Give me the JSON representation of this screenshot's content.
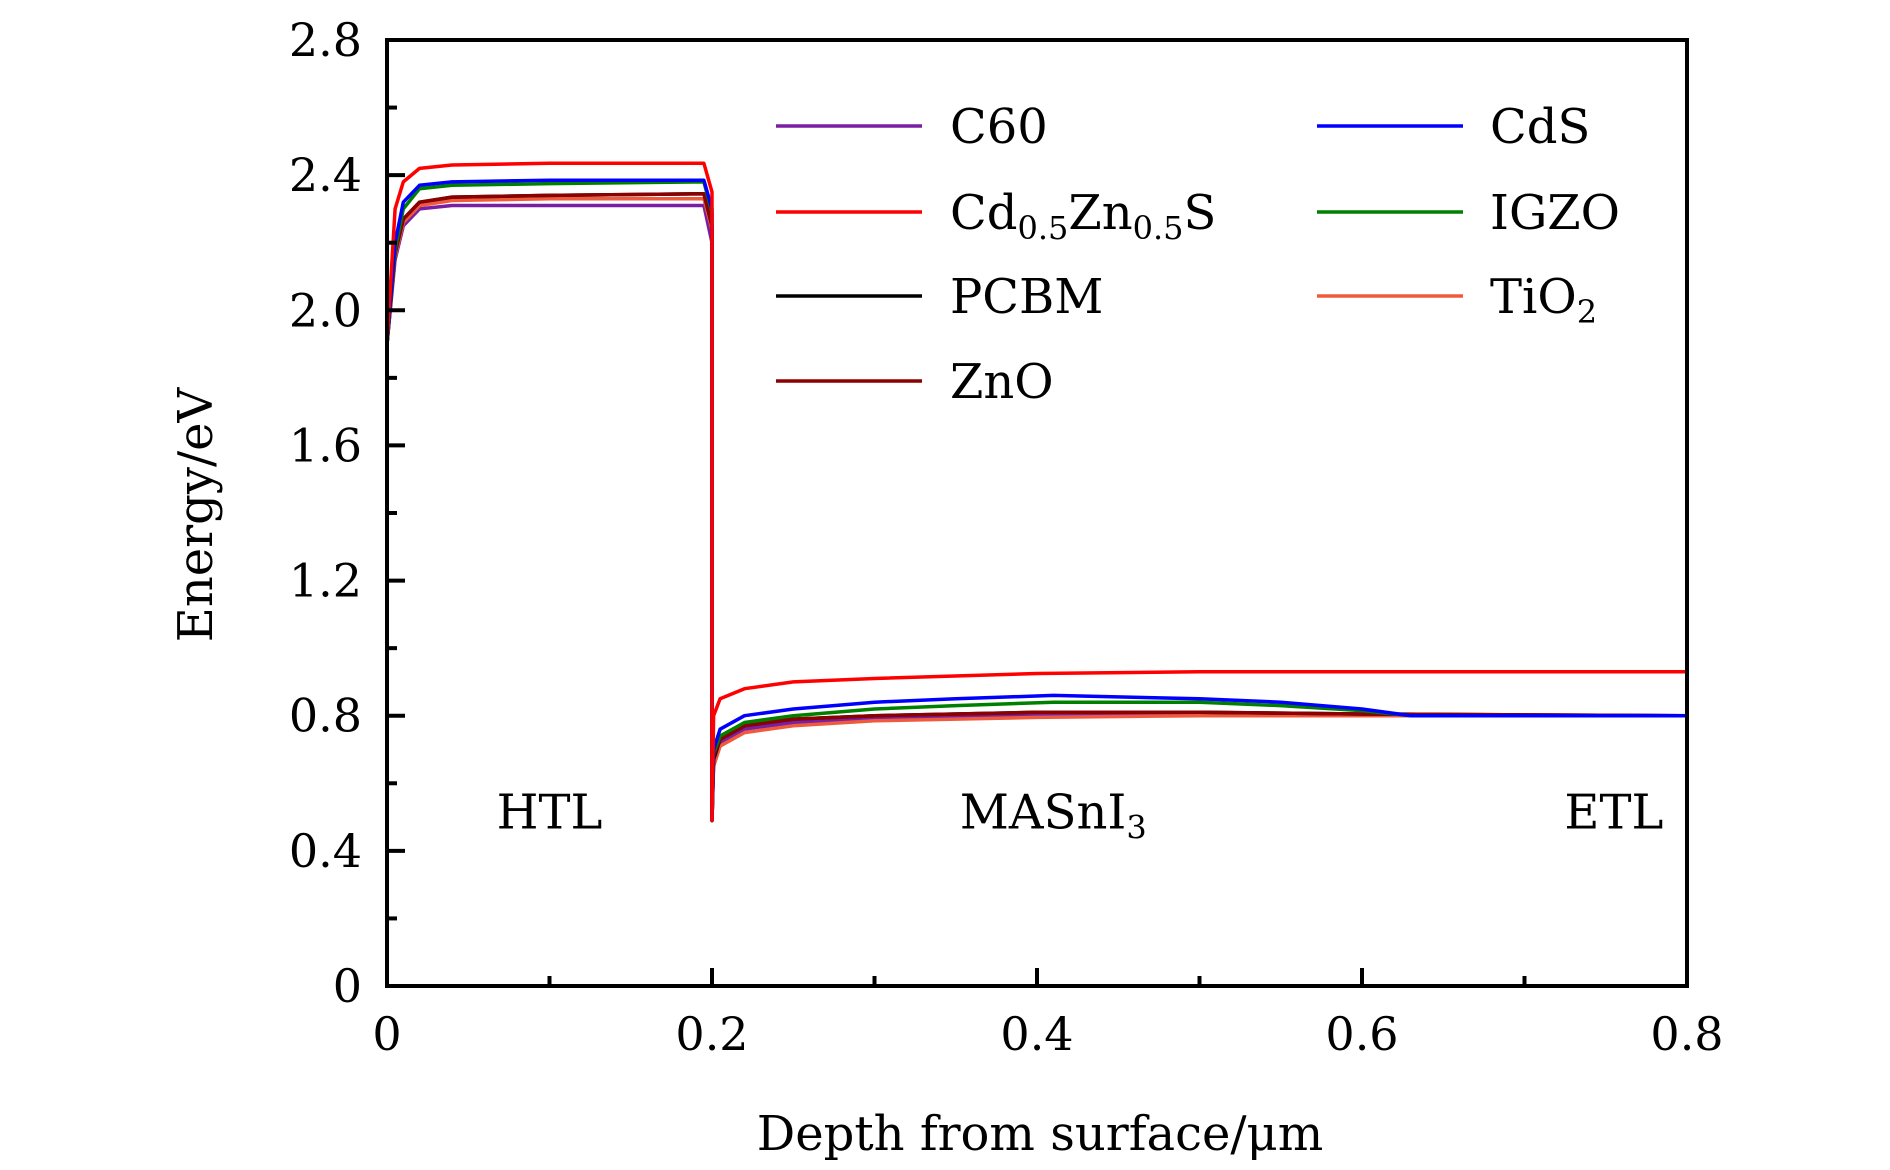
{
  "chart_data": {
    "type": "line",
    "title": "",
    "xlabel": "Depth from surface/μm",
    "ylabel": "Energy/eV",
    "xlim": [
      0,
      0.8
    ],
    "ylim": [
      0,
      2.8
    ],
    "xticks": [
      0,
      0.2,
      0.4,
      0.6,
      0.8
    ],
    "xtick_labels": [
      "0",
      "0.2",
      "0.4",
      "0.6",
      "0.8"
    ],
    "yticks": [
      0,
      0.4,
      0.8,
      1.2,
      1.6,
      2.0,
      2.4,
      2.8
    ],
    "ytick_labels": [
      "0",
      "0.4",
      "0.8",
      "1.2",
      "1.6",
      "2.0",
      "2.4",
      "2.8"
    ],
    "grid": false,
    "legend_position": "top-right",
    "annotations": [
      {
        "text": "HTL",
        "x": 0.1,
        "y": 0.52
      },
      {
        "text": "MASnI",
        "sub": "3",
        "x": 0.41,
        "y": 0.52
      },
      {
        "text": "ETL",
        "x": 0.755,
        "y": 0.52
      }
    ],
    "series": [
      {
        "name": "C60",
        "sub_parts": [
          [
            "C60",
            ""
          ]
        ],
        "color": "#7b1fa2",
        "x": [
          0,
          0.005,
          0.01,
          0.02,
          0.04,
          0.1,
          0.195,
          0.2,
          0.2,
          0.201,
          0.205,
          0.22,
          0.25,
          0.3,
          0.4,
          0.5,
          0.6,
          0.8
        ],
        "y": [
          1.9,
          2.15,
          2.25,
          2.3,
          2.31,
          2.31,
          2.31,
          2.2,
          0.49,
          0.66,
          0.72,
          0.76,
          0.78,
          0.79,
          0.8,
          0.8,
          0.8,
          0.8
        ]
      },
      {
        "name": "CdS",
        "sub_parts": [
          [
            "CdS",
            ""
          ]
        ],
        "color": "#0000ff",
        "x": [
          0,
          0.005,
          0.01,
          0.02,
          0.04,
          0.1,
          0.195,
          0.2,
          0.2,
          0.201,
          0.205,
          0.22,
          0.25,
          0.3,
          0.35,
          0.41,
          0.5,
          0.55,
          0.6,
          0.63,
          0.8
        ],
        "y": [
          1.9,
          2.2,
          2.32,
          2.37,
          2.38,
          2.385,
          2.385,
          2.3,
          0.49,
          0.7,
          0.76,
          0.8,
          0.82,
          0.84,
          0.85,
          0.86,
          0.85,
          0.84,
          0.82,
          0.8,
          0.8
        ]
      },
      {
        "name": "Cd0.5Zn0.5S",
        "sub_parts": [
          [
            "Cd",
            ""
          ],
          [
            "0.5",
            "sub"
          ],
          [
            "Zn",
            ""
          ],
          [
            "0.5",
            "sub"
          ],
          [
            "S",
            ""
          ]
        ],
        "color": "#ff0000",
        "x": [
          0,
          0.005,
          0.01,
          0.02,
          0.04,
          0.1,
          0.195,
          0.2,
          0.2,
          0.201,
          0.205,
          0.22,
          0.25,
          0.3,
          0.4,
          0.5,
          0.6,
          0.8
        ],
        "y": [
          1.9,
          2.3,
          2.38,
          2.42,
          2.43,
          2.435,
          2.435,
          2.35,
          0.49,
          0.8,
          0.85,
          0.88,
          0.9,
          0.91,
          0.925,
          0.93,
          0.93,
          0.93
        ]
      },
      {
        "name": "IGZO",
        "sub_parts": [
          [
            "IGZO",
            ""
          ]
        ],
        "color": "#008000",
        "x": [
          0,
          0.005,
          0.01,
          0.02,
          0.04,
          0.1,
          0.195,
          0.2,
          0.2,
          0.201,
          0.205,
          0.22,
          0.25,
          0.3,
          0.35,
          0.41,
          0.5,
          0.55,
          0.6,
          0.63,
          0.8
        ],
        "y": [
          1.9,
          2.18,
          2.3,
          2.36,
          2.37,
          2.375,
          2.38,
          2.29,
          0.49,
          0.69,
          0.74,
          0.78,
          0.8,
          0.82,
          0.83,
          0.84,
          0.84,
          0.83,
          0.815,
          0.8,
          0.8
        ]
      },
      {
        "name": "PCBM",
        "sub_parts": [
          [
            "PCBM",
            ""
          ]
        ],
        "color": "#000000",
        "x": [
          0,
          0.005,
          0.01,
          0.02,
          0.04,
          0.1,
          0.195,
          0.2,
          0.2,
          0.201,
          0.205,
          0.22,
          0.25,
          0.3,
          0.4,
          0.5,
          0.6,
          0.8
        ],
        "y": [
          1.9,
          2.17,
          2.27,
          2.32,
          2.335,
          2.34,
          2.345,
          2.25,
          0.49,
          0.67,
          0.73,
          0.77,
          0.79,
          0.8,
          0.81,
          0.81,
          0.805,
          0.8
        ]
      },
      {
        "name": "TiO2",
        "sub_parts": [
          [
            "TiO",
            ""
          ],
          [
            "2",
            "sub"
          ]
        ],
        "color": "#f05a3c",
        "x": [
          0,
          0.005,
          0.01,
          0.02,
          0.04,
          0.1,
          0.195,
          0.2,
          0.2,
          0.201,
          0.205,
          0.22,
          0.25,
          0.3,
          0.4,
          0.5,
          0.6,
          0.8
        ],
        "y": [
          1.9,
          2.16,
          2.26,
          2.31,
          2.325,
          2.33,
          2.33,
          2.24,
          0.49,
          0.65,
          0.71,
          0.75,
          0.77,
          0.785,
          0.795,
          0.8,
          0.8,
          0.8
        ]
      },
      {
        "name": "ZnO",
        "sub_parts": [
          [
            "ZnO",
            ""
          ]
        ],
        "color": "#8b0000",
        "x": [
          0,
          0.005,
          0.01,
          0.02,
          0.04,
          0.1,
          0.195,
          0.2,
          0.2,
          0.201,
          0.205,
          0.22,
          0.25,
          0.3,
          0.4,
          0.5,
          0.6,
          0.8
        ],
        "y": [
          1.9,
          2.17,
          2.27,
          2.32,
          2.335,
          2.34,
          2.345,
          2.25,
          0.49,
          0.68,
          0.73,
          0.77,
          0.79,
          0.8,
          0.81,
          0.81,
          0.805,
          0.8
        ]
      }
    ],
    "legend_order": [
      [
        "C60",
        "Cd0.5Zn0.5S",
        "PCBM",
        "ZnO"
      ],
      [
        "CdS",
        "IGZO",
        "TiO2"
      ]
    ]
  }
}
